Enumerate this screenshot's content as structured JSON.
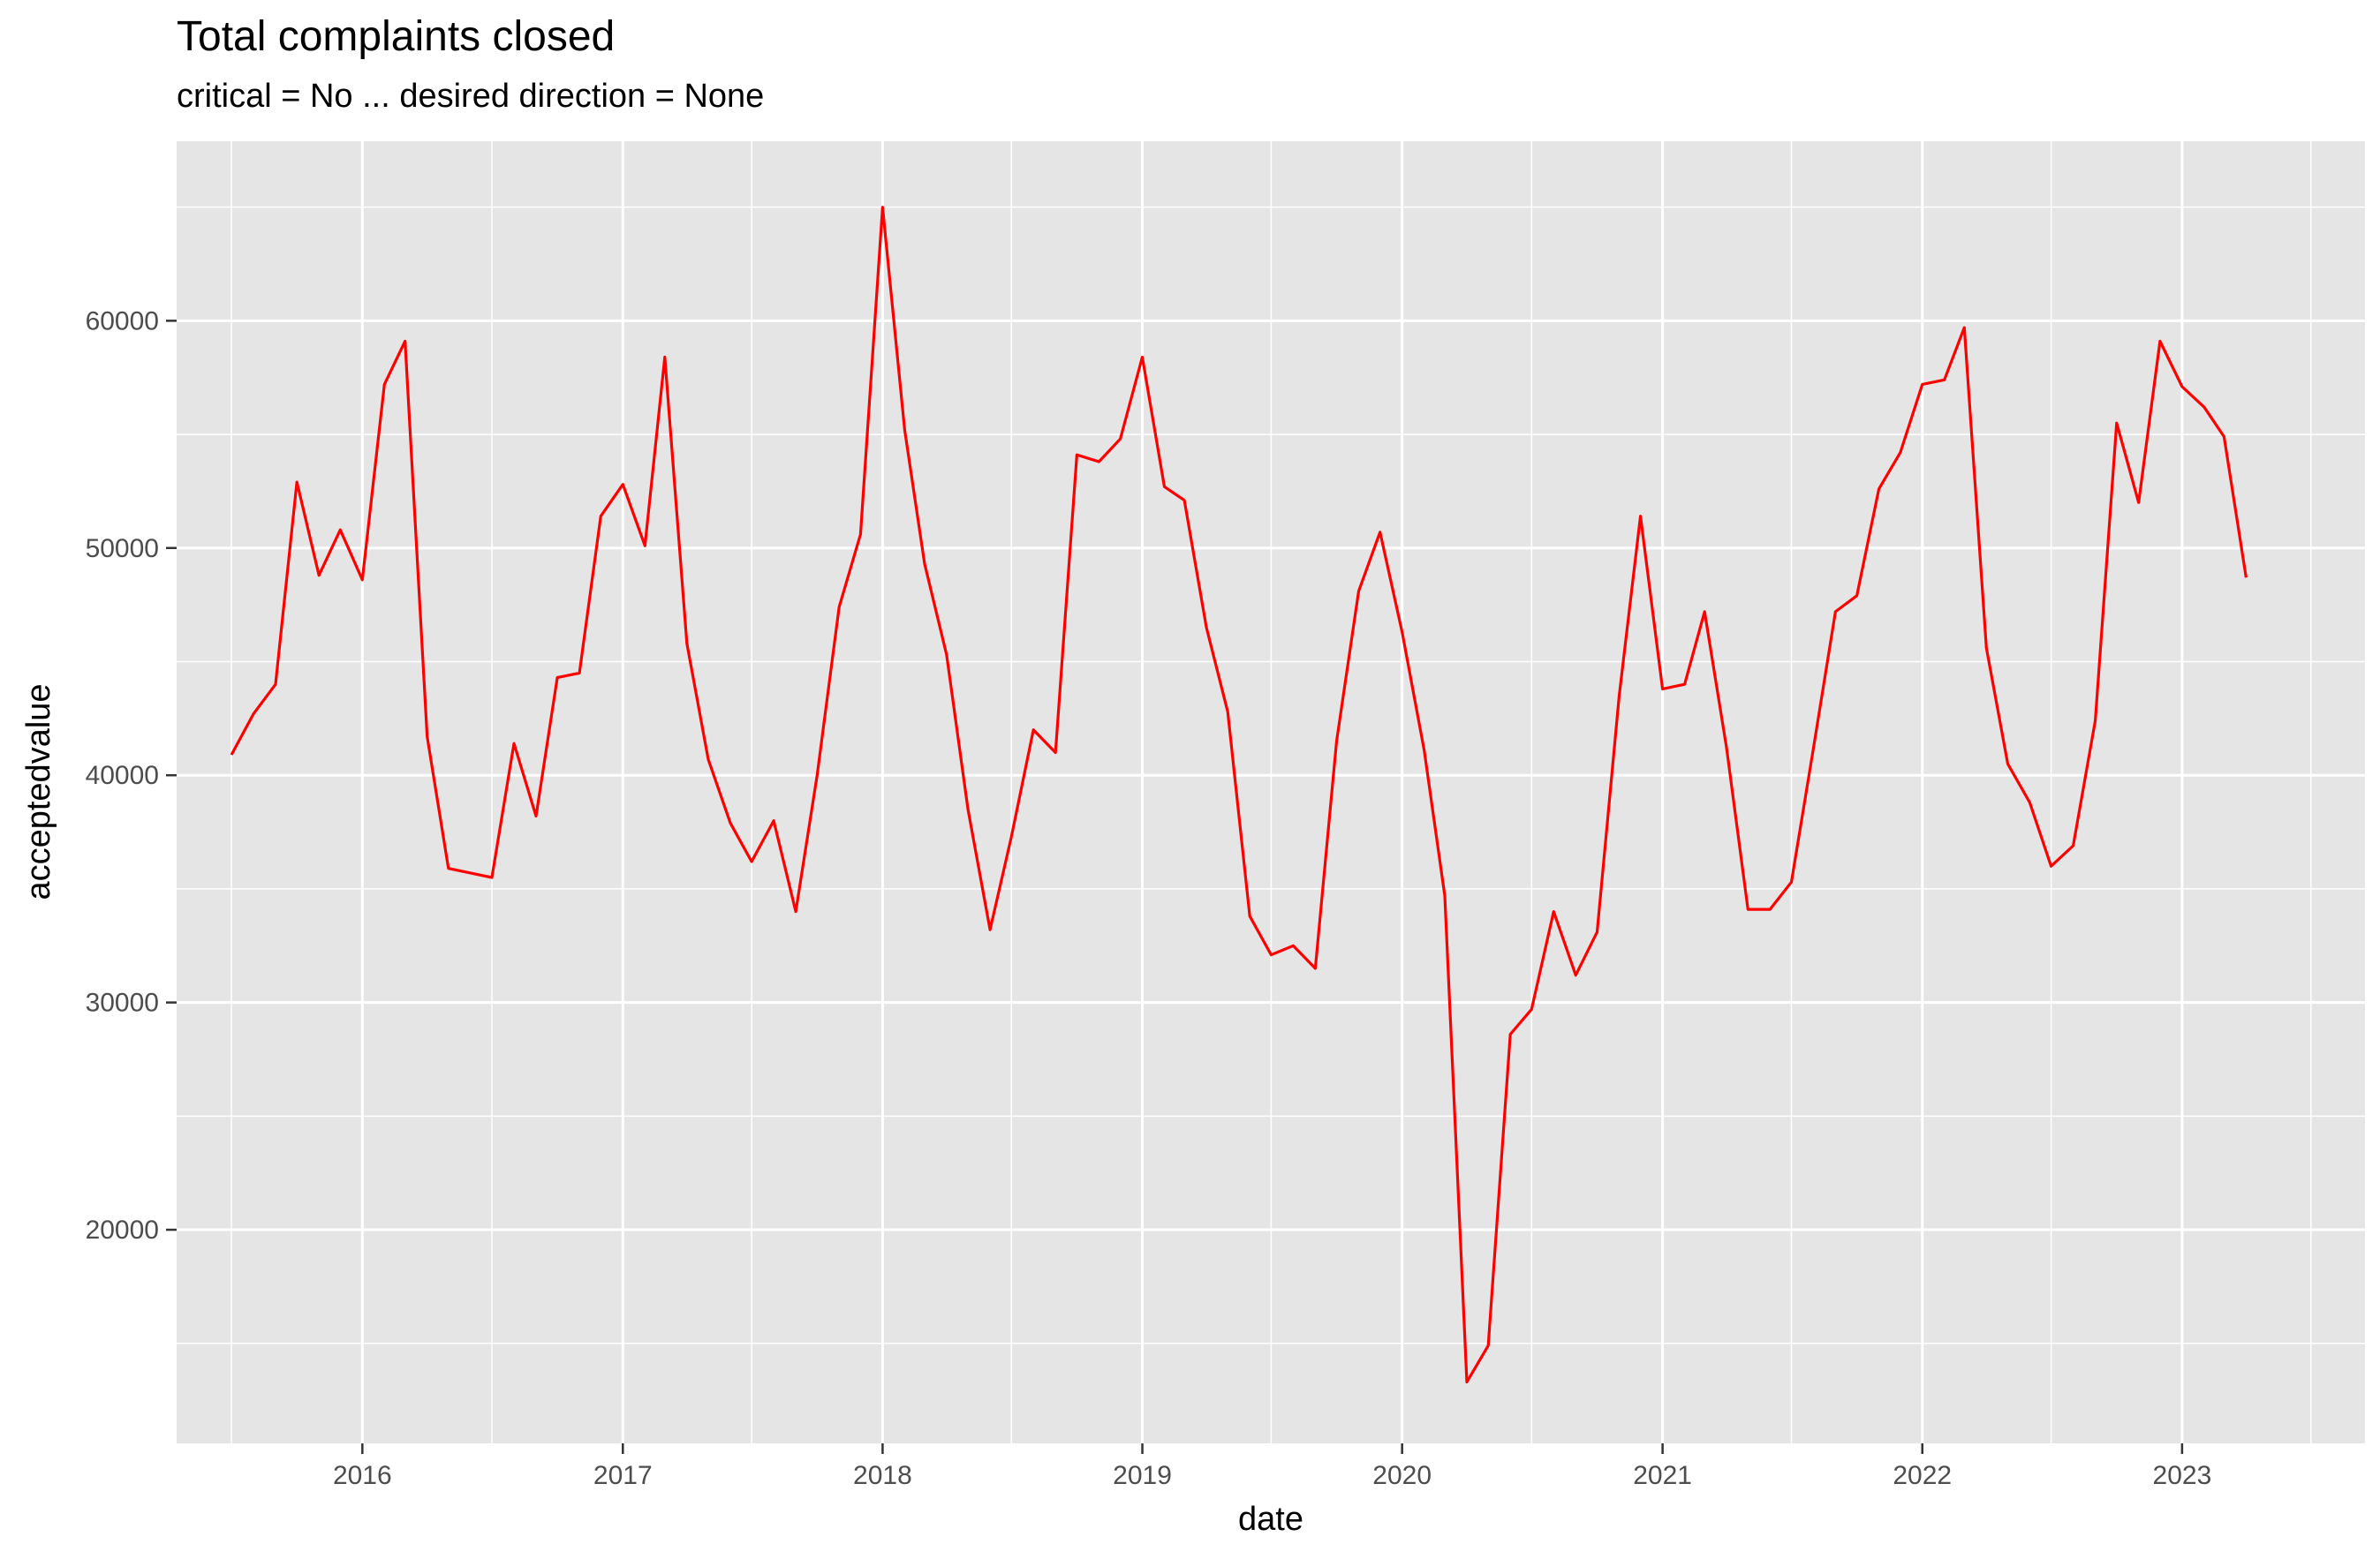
{
  "chart_data": {
    "type": "line",
    "title": "Total complaints closed",
    "subtitle": "critical = No ... desired direction = None",
    "xlabel": "date",
    "ylabel": "acceptedvalue",
    "series_color": "#ff0000",
    "panel_color": "#e5e5e5",
    "grid": true,
    "legend": "none",
    "xlim": [
      "2015-04-15",
      "2023-09-15"
    ],
    "ylim": [
      10600,
      67900
    ],
    "x_ticks": [
      "2016",
      "2017",
      "2018",
      "2019",
      "2020",
      "2021",
      "2022",
      "2023"
    ],
    "y_ticks": [
      "20000",
      "30000",
      "40000",
      "50000",
      "60000"
    ],
    "series": [
      {
        "x": [
          "2015-07",
          "2015-08",
          "2015-09",
          "2015-10",
          "2015-11",
          "2015-12",
          "2016-01",
          "2016-02",
          "2016-03",
          "2016-04",
          "2016-05",
          "2016-06",
          "2016-07",
          "2016-08",
          "2016-09",
          "2016-10",
          "2016-11",
          "2016-12",
          "2017-01",
          "2017-02",
          "2017-03",
          "2017-04",
          "2017-05",
          "2017-06",
          "2017-07",
          "2017-08",
          "2017-09",
          "2017-10",
          "2017-11",
          "2017-12",
          "2018-01",
          "2018-02",
          "2018-03",
          "2018-04",
          "2018-05",
          "2018-06",
          "2018-07",
          "2018-08",
          "2018-09",
          "2018-10",
          "2018-11",
          "2018-12",
          "2019-01",
          "2019-02",
          "2019-03",
          "2019-04",
          "2019-05",
          "2019-06",
          "2019-07",
          "2019-08",
          "2019-09",
          "2019-10",
          "2019-11",
          "2019-12",
          "2020-01",
          "2020-02",
          "2020-03",
          "2020-04",
          "2020-05",
          "2020-06",
          "2020-07",
          "2020-08",
          "2020-09",
          "2020-10",
          "2020-11",
          "2020-12",
          "2021-01",
          "2021-02",
          "2021-03",
          "2021-04",
          "2021-05",
          "2021-06",
          "2021-07",
          "2021-08",
          "2021-09",
          "2021-10",
          "2021-11",
          "2021-12",
          "2022-01",
          "2022-02",
          "2022-03",
          "2022-04",
          "2022-05",
          "2022-06",
          "2022-07",
          "2022-08",
          "2022-09",
          "2022-10",
          "2022-11",
          "2022-12",
          "2023-01",
          "2023-02",
          "2023-03",
          "2023-04"
        ],
        "values": [
          40900,
          42700,
          44000,
          52900,
          48800,
          50800,
          48600,
          57200,
          59100,
          41700,
          35900,
          35700,
          35500,
          41400,
          38200,
          44300,
          44500,
          51400,
          52800,
          50100,
          58400,
          45800,
          40700,
          37900,
          36200,
          38000,
          34000,
          40000,
          47400,
          50600,
          65000,
          55200,
          49300,
          45300,
          38500,
          33200,
          37300,
          42000,
          41000,
          54100,
          53800,
          54800,
          58400,
          52700,
          52100,
          46500,
          42800,
          33800,
          32100,
          32500,
          31500,
          41500,
          48100,
          50700,
          46300,
          41100,
          34700,
          13300,
          14900,
          28600,
          29700,
          34000,
          31200,
          33100,
          43500,
          51400,
          43800,
          44000,
          47200,
          41200,
          34100,
          34100,
          35300,
          41200,
          47200,
          47900,
          52600,
          54200,
          57200,
          57400,
          59700,
          45600,
          40500,
          38800,
          36000,
          36900,
          42400,
          55500,
          52000,
          59100,
          57100,
          56200,
          54900,
          48700
        ]
      }
    ]
  }
}
